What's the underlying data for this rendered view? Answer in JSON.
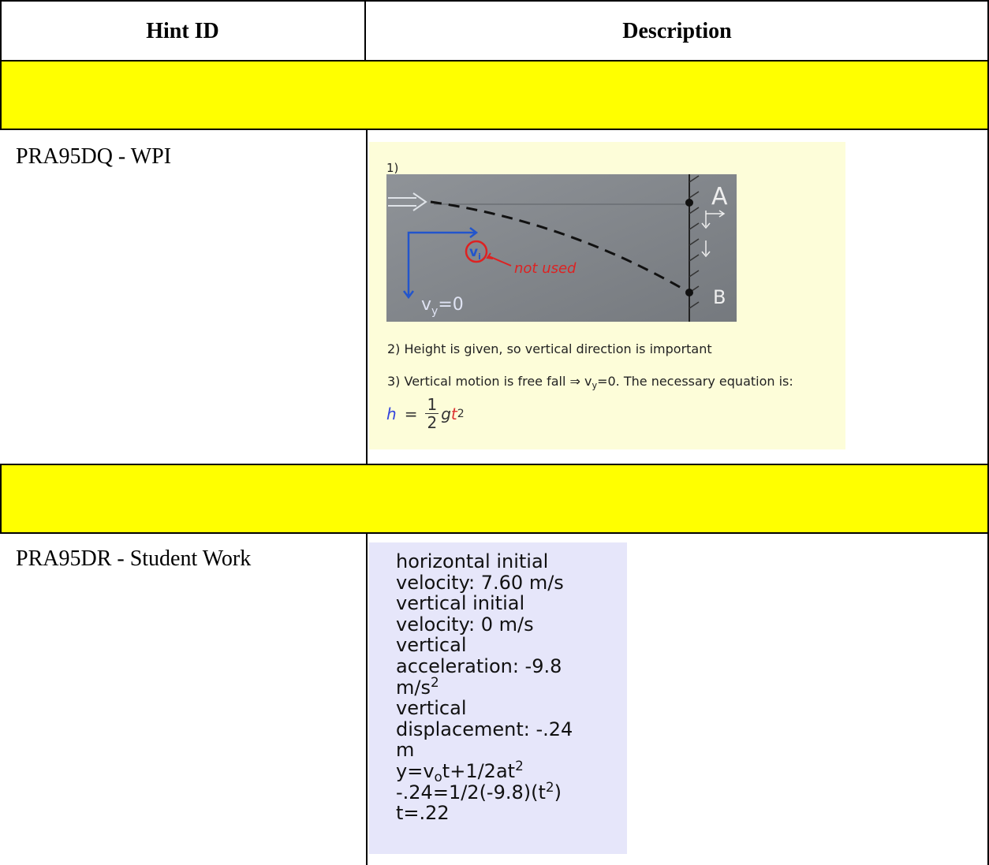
{
  "table": {
    "headers": [
      "Hint ID",
      "Description"
    ],
    "rows": [
      {
        "hint_id": "PRA95DQ - WPI",
        "description": {
          "step1": "1)",
          "sketch": {
            "label_a": "A",
            "label_b": "B",
            "note": "not used",
            "vi": [
              "v",
              {
                "sub": "i"
              }
            ],
            "vy": [
              "v",
              {
                "sub": "y"
              },
              "=0"
            ]
          },
          "step2": "2) Height is given, so vertical direction is important",
          "step3": [
            "3) Vertical motion is free fall ⇒ v",
            {
              "sub": "y"
            },
            "=0. The necessary equation is:"
          ],
          "equation": {
            "lhs": "h",
            "eq": "=",
            "numerator": "1",
            "denominator": "2",
            "g": "g",
            "t": "t",
            "exponent": "2"
          }
        }
      },
      {
        "hint_id": "PRA95DR - Student Work",
        "description": {
          "lines": [
            [
              "horizontal initial"
            ],
            [
              "velocity: 7.60 m/s"
            ],
            [
              "vertical initial"
            ],
            [
              "velocity: 0 m/s"
            ],
            [
              "vertical"
            ],
            [
              "acceleration: -9.8"
            ],
            [
              "m/s",
              {
                "sup": "2"
              }
            ],
            [
              "vertical"
            ],
            [
              "displacement: -.24"
            ],
            [
              "m"
            ],
            [
              "y=v",
              {
                "sub": "o"
              },
              "t+1/2at",
              {
                "sup": "2"
              }
            ],
            [
              "-.24=1/2(-9.8)(t",
              {
                "sup": "2"
              },
              ")"
            ],
            [
              "t=.22"
            ]
          ]
        }
      }
    ]
  }
}
